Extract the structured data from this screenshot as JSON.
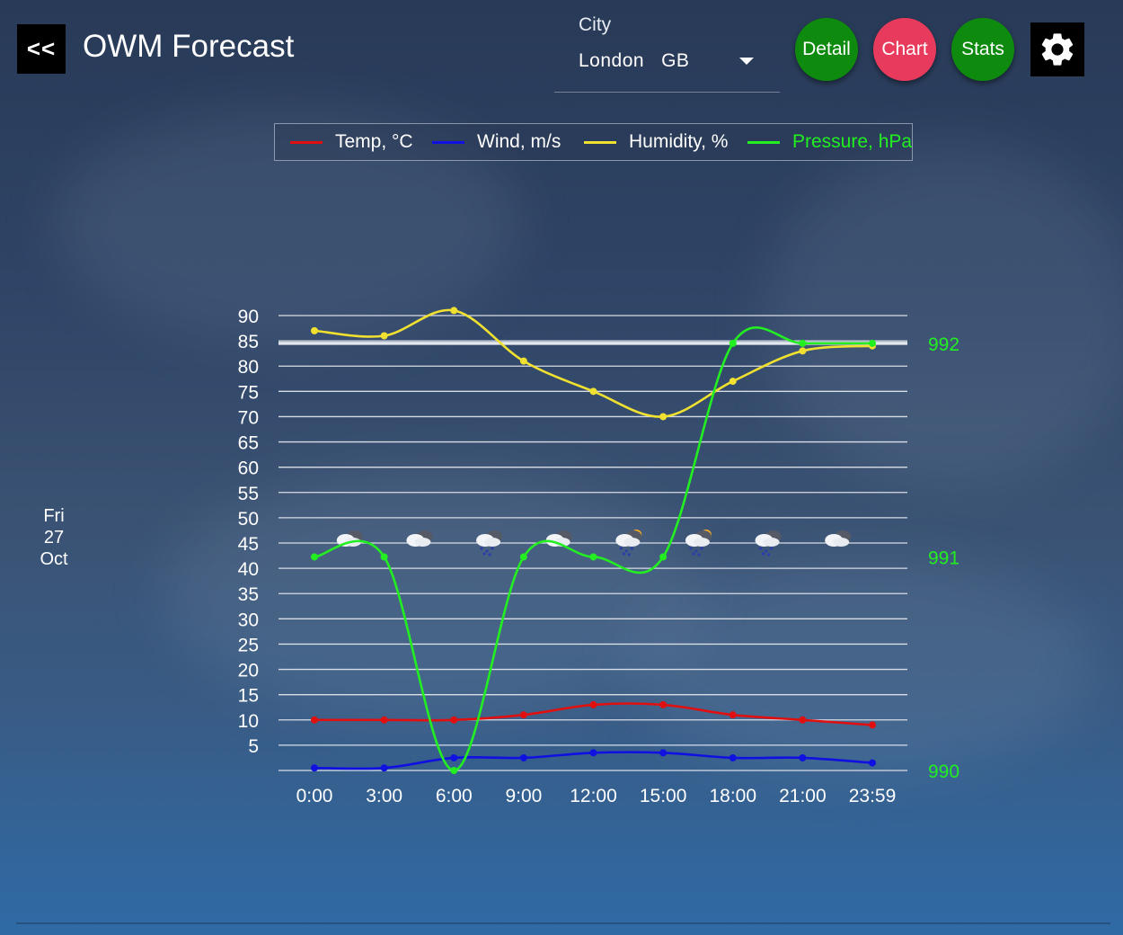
{
  "header": {
    "back_label": "<<",
    "title": "OWM Forecast",
    "city_label": "City",
    "city_value": "London   GB",
    "buttons": [
      {
        "label": "Detail",
        "color": "#0e8a0e"
      },
      {
        "label": "Chart",
        "color": "#e83a5c"
      },
      {
        "label": "Stats",
        "color": "#0e8a0e"
      }
    ],
    "settings_icon": "gear-icon"
  },
  "date": {
    "day": "Fri",
    "date": "27",
    "month": "Oct"
  },
  "chart_data": {
    "type": "line",
    "x": [
      "0:00",
      "3:00",
      "6:00",
      "9:00",
      "12:00",
      "15:00",
      "18:00",
      "21:00",
      "23:59"
    ],
    "ylim": [
      0,
      90
    ],
    "yticks": [
      5,
      10,
      15,
      20,
      25,
      30,
      35,
      40,
      45,
      50,
      55,
      60,
      65,
      70,
      75,
      80,
      85,
      90
    ],
    "y2lim": [
      990,
      992.13
    ],
    "y2ticks": [
      990,
      991,
      992
    ],
    "legend_position": "top-center",
    "grid": true,
    "series": [
      {
        "name": "Temp, °C",
        "color": "#e01010",
        "axis": "left",
        "values": [
          10,
          10,
          10,
          11,
          13,
          13,
          11,
          10,
          9
        ]
      },
      {
        "name": "Wind, m/s",
        "color": "#1010e0",
        "axis": "left",
        "values": [
          0.5,
          0.5,
          2.5,
          2.5,
          3.5,
          3.5,
          2.5,
          2.5,
          1.5
        ]
      },
      {
        "name": "Humidity, %",
        "color": "#f0e030",
        "axis": "left",
        "values": [
          87,
          86,
          91,
          81,
          75,
          70,
          77,
          83,
          84
        ]
      },
      {
        "name": "Pressure, hPa",
        "color": "#22ee22",
        "axis": "right",
        "values": [
          991,
          991,
          990,
          991,
          991,
          991,
          992,
          992,
          992
        ]
      }
    ],
    "weather_icons": [
      "cloud",
      "cloud",
      "rain",
      "cloud",
      "sun-rain",
      "sun-rain",
      "rain",
      "cloud"
    ]
  }
}
